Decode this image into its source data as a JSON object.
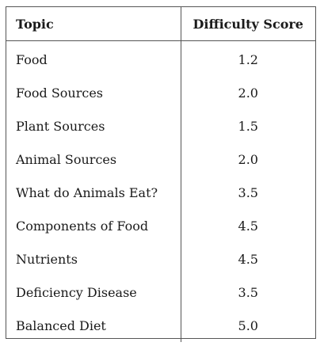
{
  "table": {
    "headers": {
      "topic": "Topic",
      "score": "Difficulty Score"
    },
    "rows": [
      {
        "topic": "Food",
        "score": "1.2"
      },
      {
        "topic": "Food Sources",
        "score": "2.0"
      },
      {
        "topic": "Plant Sources",
        "score": "1.5"
      },
      {
        "topic": "Animal Sources",
        "score": "2.0"
      },
      {
        "topic": "What do Animals Eat?",
        "score": "3.5"
      },
      {
        "topic": "Components of Food",
        "score": "4.5"
      },
      {
        "topic": "Nutrients",
        "score": "4.5"
      },
      {
        "topic": "Deficiency Disease",
        "score": "3.5"
      },
      {
        "topic": "Balanced Diet",
        "score": "5.0"
      }
    ]
  }
}
